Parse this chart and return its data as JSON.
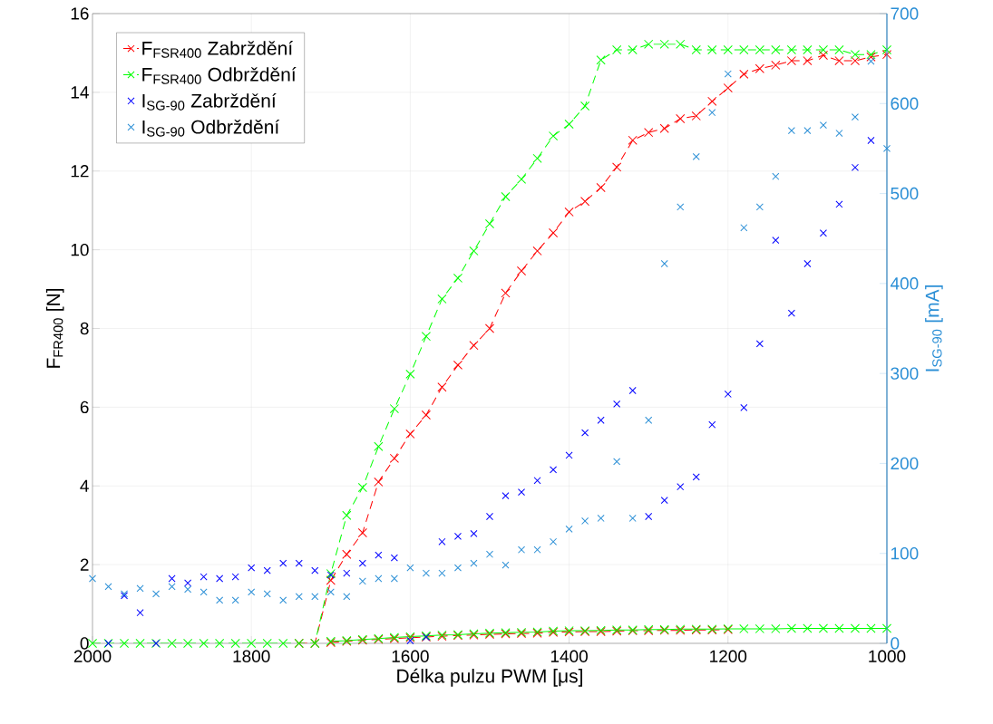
{
  "chart_data": {
    "type": "line",
    "xlabel": "Délka pulzu PWM [μs]",
    "ylabel": "F$_{FR400}$ [N]",
    "y2label": "I$_{SG-90}$ [mA]",
    "x": [
      2000,
      1980,
      1960,
      1940,
      1920,
      1900,
      1880,
      1860,
      1840,
      1820,
      1800,
      1780,
      1760,
      1740,
      1720,
      1700,
      1680,
      1660,
      1640,
      1620,
      1600,
      1580,
      1560,
      1540,
      1520,
      1500,
      1480,
      1460,
      1440,
      1420,
      1400,
      1380,
      1360,
      1340,
      1320,
      1300,
      1280,
      1260,
      1240,
      1220,
      1200,
      1180,
      1160,
      1140,
      1120,
      1100,
      1080,
      1060,
      1040,
      1020,
      1000
    ],
    "xlim": [
      2000,
      1000
    ],
    "xticks": [
      2000,
      1800,
      1600,
      1400,
      1200,
      1000
    ],
    "ylim": [
      0,
      16
    ],
    "yticks": [
      0,
      2,
      4,
      6,
      8,
      10,
      12,
      14,
      16
    ],
    "y2lim": [
      0,
      700
    ],
    "y2ticks": [
      0,
      100,
      200,
      300,
      400,
      500,
      600,
      700
    ],
    "grid": true,
    "legend": "top left",
    "marker": "cross",
    "series": [
      {
        "name": "F$_{FSR400}$ Zabrždění",
        "type": "line",
        "line_style": "dashed",
        "color": "#ff0000",
        "values": [
          null,
          null,
          null,
          null,
          null,
          null,
          null,
          null,
          null,
          null,
          null,
          null,
          null,
          0,
          0,
          1.6,
          2.26,
          2.81,
          4.1,
          4.7,
          5.32,
          5.8,
          6.51,
          7.07,
          7.57,
          8.0,
          8.9,
          9.46,
          9.97,
          10.43,
          10.96,
          11.23,
          11.58,
          12.1,
          12.78,
          12.98,
          13.08,
          13.33,
          13.4,
          13.77,
          14.11,
          14.46,
          14.6,
          14.69,
          14.8,
          14.8,
          14.94,
          14.8,
          14.8,
          14.9,
          14.96
        ]
      },
      {
        "name": "F$_{FSR400}$ Odbrždění",
        "type": "line",
        "line_style": "dashed",
        "color": "#00ff00",
        "values": [
          0,
          0,
          0,
          0,
          0,
          0,
          0,
          0,
          0,
          0,
          0,
          0,
          0,
          0,
          0,
          1.77,
          3.25,
          3.96,
          5.0,
          5.96,
          6.84,
          7.8,
          8.75,
          9.28,
          9.97,
          10.66,
          11.35,
          11.79,
          12.32,
          12.89,
          13.19,
          13.65,
          14.82,
          15.08,
          15.08,
          15.22,
          15.22,
          15.22,
          15.08,
          15.08,
          15.08,
          15.08,
          15.08,
          15.08,
          15.08,
          15.08,
          15.08,
          15.08,
          14.96,
          14.96,
          15.08
        ]
      },
      {
        "name": "I$_{SG-90}$ Zabrždění",
        "type": "scatter",
        "axis": "y2",
        "color": "#0000ff",
        "values": [
          null,
          0,
          53,
          34,
          0,
          72,
          67,
          74,
          72,
          74,
          84,
          81,
          89,
          89,
          81,
          76,
          78,
          89,
          98,
          95,
          3,
          7,
          113,
          119,
          122,
          141,
          164,
          168,
          181,
          193,
          209,
          234,
          248,
          266,
          281,
          141,
          159,
          174,
          185,
          243,
          277,
          262,
          333,
          448,
          367,
          422,
          456,
          488,
          529,
          559,
          null
        ]
      },
      {
        "name": "I$_{SG-90}$ Odbrždění",
        "type": "scatter",
        "axis": "y2",
        "color": "#2b8fd6",
        "values": [
          72,
          63,
          55,
          61,
          55,
          63,
          60,
          57,
          48,
          48,
          57,
          55,
          48,
          52,
          52,
          57,
          52,
          69,
          72,
          72,
          84,
          78,
          78,
          84,
          89,
          99,
          87,
          104,
          104,
          113,
          127,
          136,
          139,
          202,
          139,
          248,
          422,
          485,
          541,
          590,
          633,
          462,
          485,
          519,
          570,
          570,
          576,
          567,
          585,
          647,
          550
        ]
      },
      {
        "type": "line",
        "line_style": "dashed",
        "color": "#ff0000",
        "values": [
          null,
          null,
          null,
          null,
          null,
          null,
          null,
          null,
          null,
          null,
          null,
          null,
          null,
          null,
          null,
          0.02,
          0.05,
          0.08,
          0.1,
          0.12,
          0.14,
          0.16,
          0.18,
          0.2,
          0.21,
          0.23,
          0.24,
          0.25,
          0.26,
          0.28,
          0.29,
          0.3,
          0.3,
          0.31,
          0.32,
          0.32,
          0.33,
          0.33,
          0.34,
          0.34,
          0.35,
          null,
          null,
          null,
          null,
          null,
          null,
          null,
          null,
          null,
          null
        ]
      },
      {
        "type": "line",
        "line_style": "solid",
        "color": "#00ff00",
        "values": [
          null,
          null,
          null,
          null,
          null,
          null,
          null,
          null,
          null,
          null,
          null,
          null,
          null,
          null,
          null,
          0.05,
          0.07,
          0.1,
          0.12,
          0.15,
          0.17,
          0.19,
          0.21,
          0.22,
          0.24,
          0.26,
          0.27,
          0.28,
          0.29,
          0.31,
          0.32,
          0.32,
          0.33,
          0.34,
          0.34,
          0.35,
          0.35,
          0.36,
          0.36,
          0.36,
          0.37,
          0.37,
          0.37,
          0.37,
          0.38,
          0.38,
          0.38,
          0.38,
          0.38,
          0.38,
          0.38
        ]
      }
    ]
  }
}
